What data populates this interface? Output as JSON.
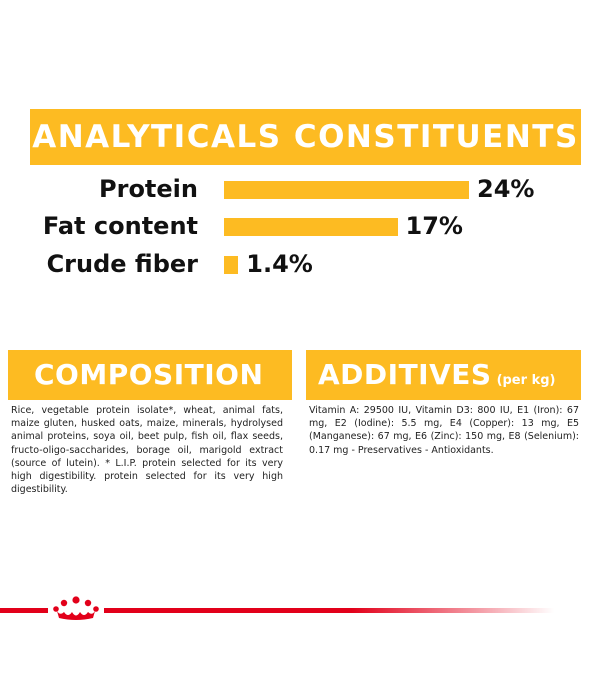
{
  "analytics": {
    "title": "ANALYTICALS CONSTITUENTS",
    "rows": [
      {
        "label": "Protein",
        "value": "24%",
        "percent": 24
      },
      {
        "label": "Fat content",
        "value": "17%",
        "percent": 17
      },
      {
        "label": "Crude fiber",
        "value": "1.4%",
        "percent": 1.4
      }
    ]
  },
  "composition": {
    "title": "COMPOSITION",
    "text": "Rice, vegetable protein isolate*, wheat, animal fats, maize gluten, husked oats, maize, minerals, hydrolysed animal proteins, soya oil, beet pulp, fish oil, flax seeds, fructo-oligo-saccharides, borage oil, marigold extract (source of lutein). * L.I.P. protein selected for its very high digestibility. protein selected for its very high digestibility."
  },
  "additives": {
    "title": "ADDITIVES",
    "unit": "(per kg)",
    "text": "Vitamin A: 29500 IU, Vitamin D3: 800 IU, E1 (Iron): 67 mg, E2 (Iodine): 5.5 mg, E4 (Copper): 13 mg, E5 (Manganese): 67 mg, E6 (Zinc): 150 mg, E8 (Selenium): 0.17 mg - Preservatives - Antioxidants."
  },
  "colors": {
    "accent": "#fdbb22",
    "brand_red": "#e2001a"
  },
  "icons": {
    "logo": "royal-canin-crown-icon"
  }
}
